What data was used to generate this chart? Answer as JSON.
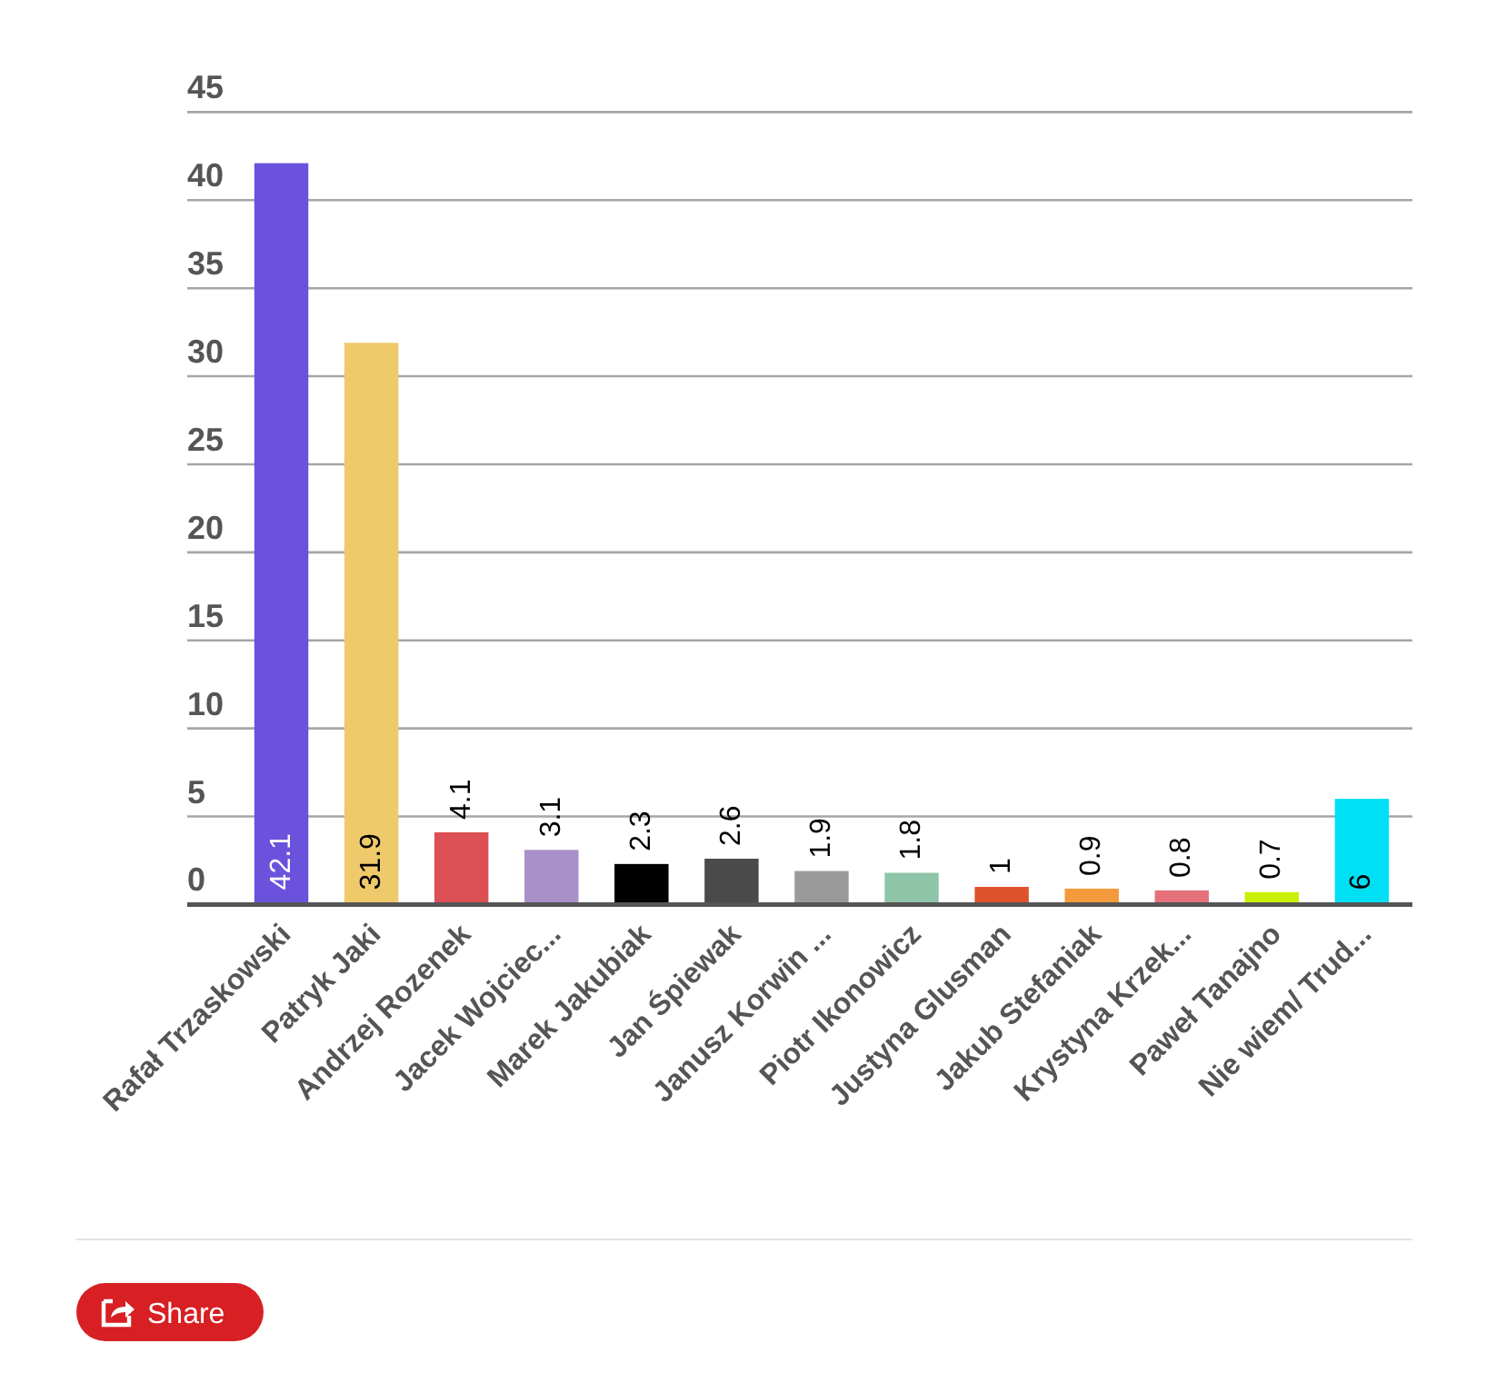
{
  "chart_data": {
    "type": "bar",
    "categories": [
      "Rafał Trzaskowski",
      "Patryk Jaki",
      "Andrzej Rozenek",
      "Jacek Wojciec...",
      "Marek Jakubiak",
      "Jan Śpiewak",
      "Janusz Korwin ...",
      "Piotr Ikonowicz",
      "Justyna Glusman",
      "Jakub Stefaniak",
      "Krystyna Krzek...",
      "Paweł Tanajno",
      "Nie wiem/ Trud..."
    ],
    "values": [
      42.1,
      31.9,
      4.1,
      3.1,
      2.3,
      2.6,
      1.9,
      1.8,
      1,
      0.9,
      0.8,
      0.7,
      6
    ],
    "colors": [
      "#6b52dc",
      "#efca6b",
      "#db4f55",
      "#a891c8",
      "#000000",
      "#4a4a4a",
      "#9a9a9a",
      "#8ec5a8",
      "#e0522c",
      "#f29a3c",
      "#e4717a",
      "#c8f000",
      "#00e0f5"
    ],
    "ylim": [
      0,
      45
    ],
    "yticks": [
      0,
      5,
      10,
      15,
      20,
      25,
      30,
      35,
      40,
      45
    ],
    "grid": "y",
    "data_labels": true,
    "annotations": [
      "Share"
    ]
  }
}
